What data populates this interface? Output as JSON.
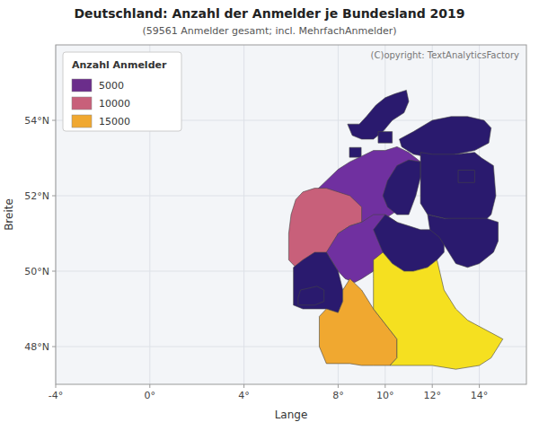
{
  "chart_data": {
    "type": "map",
    "title": "Deutschland: Anzahl der Anmelder je Bundesland 2019",
    "subtitle": "(59561 Anmelder gesamt; incl. MehrfachAnmelder)",
    "annotation": "(C)opyright: TextAnalyticsFactory",
    "xlabel": "Lange",
    "ylabel": "Breite",
    "xlim": [
      -4,
      16
    ],
    "ylim": [
      47,
      56
    ],
    "xticks": [
      {
        "value": -4,
        "label": "-4°"
      },
      {
        "value": 0,
        "label": "0°"
      },
      {
        "value": 4,
        "label": "4°"
      },
      {
        "value": 8,
        "label": "8°"
      },
      {
        "value": 10,
        "label": "10°"
      },
      {
        "value": 12,
        "label": "12°"
      },
      {
        "value": 14,
        "label": "14°"
      }
    ],
    "yticks": [
      {
        "value": 48,
        "label": "48°N"
      },
      {
        "value": 50,
        "label": "50°N"
      },
      {
        "value": 52,
        "label": "52°N"
      },
      {
        "value": 54,
        "label": "54°N"
      }
    ],
    "grid": true,
    "legend": "upper left",
    "legend_title": "Anzahl Anmelder",
    "legend_entries": [
      {
        "name": "5000",
        "color": "#6B2D8B"
      },
      {
        "name": "10000",
        "color": "#C8607A"
      },
      {
        "name": "15000",
        "color": "#F0A830"
      }
    ],
    "regions": [
      {
        "color": "#2A1A6E",
        "x": [
          8.4,
          8.6,
          8.9,
          9.2,
          9.6,
          10.0,
          10.4,
          10.9,
          11.0,
          10.8,
          10.3,
          9.9,
          9.5,
          9.0,
          8.6,
          8.4
        ],
        "y": [
          53.9,
          53.9,
          53.9,
          54.1,
          54.4,
          54.6,
          54.7,
          54.8,
          54.5,
          54.2,
          54.0,
          53.7,
          53.5,
          53.5,
          53.6,
          53.9
        ]
      },
      {
        "color": "#2A1A6E",
        "x": [
          9.7,
          10.3,
          10.3,
          9.7,
          9.7
        ],
        "y": [
          53.4,
          53.4,
          53.7,
          53.7,
          53.4
        ]
      },
      {
        "color": "#2A1A6E",
        "x": [
          10.6,
          11.2,
          12.0,
          12.8,
          13.5,
          14.2,
          14.5,
          14.4,
          13.8,
          13.0,
          12.0,
          11.2,
          10.7,
          10.6
        ],
        "y": [
          53.5,
          53.7,
          54.0,
          54.1,
          54.1,
          54.0,
          53.8,
          53.4,
          53.2,
          53.1,
          53.0,
          53.1,
          53.3,
          53.5
        ]
      },
      {
        "color": "#2A1A6E",
        "x": [
          8.48,
          8.98,
          8.98,
          8.48,
          8.48
        ],
        "y": [
          53.02,
          53.02,
          53.28,
          53.28,
          53.02
        ]
      },
      {
        "color": "#7030A0",
        "x": [
          6.65,
          7.0,
          7.5,
          8.0,
          8.5,
          9.0,
          9.5,
          10.0,
          10.5,
          11.0,
          11.5,
          11.5,
          11.2,
          10.9,
          10.5,
          10.0,
          9.5,
          9.0,
          8.5,
          8.0,
          7.5,
          7.1,
          6.65
        ],
        "y": [
          51.85,
          52.1,
          52.4,
          52.7,
          52.9,
          53.05,
          53.2,
          53.2,
          53.3,
          53.15,
          52.9,
          52.5,
          52.1,
          51.8,
          51.6,
          51.4,
          51.35,
          51.3,
          51.35,
          51.5,
          51.7,
          51.85,
          51.85
        ]
      },
      {
        "color": "#2A1A6E",
        "x": [
          10.5,
          11.0,
          11.5,
          11.5,
          11.3,
          11.0,
          10.5,
          10.1,
          9.9,
          10.1,
          10.5
        ],
        "y": [
          52.8,
          52.95,
          52.9,
          52.5,
          52.0,
          51.5,
          51.5,
          51.7,
          52.0,
          52.4,
          52.8
        ]
      },
      {
        "color": "#2A1A6E",
        "x": [
          11.5,
          12.0,
          13.0,
          13.8,
          14.1,
          14.6,
          14.7,
          14.5,
          14.0,
          13.5,
          12.5,
          11.8,
          11.5,
          11.5,
          11.5,
          11.5
        ],
        "y": [
          53.15,
          53.1,
          53.1,
          53.15,
          53.0,
          52.8,
          52.0,
          51.5,
          51.2,
          51.3,
          51.4,
          51.5,
          51.8,
          52.5,
          52.9,
          53.15
        ]
      },
      {
        "color": "#2A1A6E",
        "x": [
          13.1,
          13.8,
          13.8,
          13.1,
          13.1
        ],
        "y": [
          52.35,
          52.35,
          52.68,
          52.68,
          52.35
        ]
      },
      {
        "color": "#C8607A",
        "x": [
          5.9,
          6.2,
          6.5,
          7.0,
          7.5,
          7.8,
          8.0,
          8.5,
          9.0,
          9.0,
          8.5,
          8.0,
          7.5,
          7.0,
          6.5,
          6.2,
          6.0,
          5.9,
          5.9
        ],
        "y": [
          50.3,
          50.1,
          49.9,
          50.0,
          50.3,
          50.6,
          51.0,
          51.2,
          51.3,
          51.7,
          52.0,
          52.1,
          52.2,
          52.2,
          52.1,
          51.9,
          51.5,
          51.0,
          50.3
        ]
      },
      {
        "color": "#7030A0",
        "x": [
          8.0,
          8.3,
          8.7,
          9.0,
          9.5,
          9.9,
          10.2,
          10.5,
          10.5,
          10.0,
          9.5,
          9.0,
          8.5,
          8.0,
          7.5,
          8.0
        ],
        "y": [
          50.0,
          49.8,
          49.7,
          49.8,
          50.0,
          50.3,
          50.6,
          50.9,
          51.3,
          51.5,
          51.5,
          51.3,
          51.2,
          51.0,
          50.5,
          50.0
        ]
      },
      {
        "color": "#2A1A6E",
        "x": [
          9.9,
          10.3,
          10.8,
          11.2,
          11.8,
          12.2,
          12.5,
          12.5,
          12.0,
          11.5,
          11.0,
          10.5,
          10.0,
          9.5,
          9.9
        ],
        "y": [
          50.5,
          50.2,
          50.0,
          50.0,
          50.1,
          50.3,
          50.5,
          50.9,
          51.1,
          51.1,
          51.2,
          51.3,
          51.5,
          51.1,
          50.5
        ]
      },
      {
        "color": "#2A1A6E",
        "x": [
          11.9,
          12.3,
          12.7,
          13.0,
          13.5,
          14.0,
          14.6,
          14.8,
          14.8,
          14.3,
          13.5,
          12.5,
          11.8,
          11.9
        ],
        "y": [
          51.1,
          50.9,
          50.5,
          50.2,
          50.1,
          50.2,
          50.5,
          50.8,
          51.3,
          51.4,
          51.4,
          51.4,
          51.5,
          51.1
        ]
      },
      {
        "color": "#2A1A6E",
        "x": [
          6.1,
          6.5,
          7.0,
          7.5,
          8.0,
          8.2,
          8.2,
          8.0,
          7.5,
          7.0,
          6.5,
          6.1,
          6.1,
          6.1
        ],
        "y": [
          49.1,
          49.0,
          49.0,
          49.0,
          48.9,
          49.2,
          49.5,
          50.0,
          50.5,
          50.5,
          50.3,
          50.1,
          49.5,
          49.1
        ]
      },
      {
        "color": "#2A1A6E",
        "x": [
          6.3,
          7.0,
          7.4,
          7.4,
          7.1,
          6.4,
          6.3,
          6.3
        ],
        "y": [
          49.1,
          49.1,
          49.2,
          49.5,
          49.6,
          49.5,
          49.3,
          49.1
        ]
      },
      {
        "color": "#F0A830",
        "x": [
          7.5,
          8.0,
          8.5,
          9.0,
          9.5,
          10.2,
          10.5,
          10.5,
          10.0,
          9.5,
          9.0,
          8.5,
          8.2,
          8.2,
          8.0,
          7.5,
          7.2,
          7.2,
          7.5
        ],
        "y": [
          47.55,
          47.55,
          47.55,
          47.5,
          47.5,
          47.5,
          47.7,
          48.2,
          48.6,
          49.0,
          49.5,
          49.8,
          49.5,
          49.2,
          48.9,
          49.0,
          48.8,
          48.0,
          47.55
        ]
      },
      {
        "color": "#F5E020",
        "x": [
          10.2,
          10.8,
          12.0,
          13.0,
          14.0,
          14.5,
          15.0,
          13.8,
          13.5,
          13.0,
          12.5,
          12.2,
          11.8,
          11.2,
          10.8,
          10.3,
          9.9,
          9.5,
          9.5,
          9.5,
          10.0,
          10.5,
          10.5,
          10.2
        ],
        "y": [
          47.5,
          47.5,
          47.5,
          47.4,
          47.5,
          47.7,
          48.2,
          48.6,
          48.7,
          49.0,
          49.5,
          50.3,
          50.1,
          50.0,
          50.0,
          50.2,
          50.5,
          50.3,
          49.8,
          49.0,
          48.6,
          48.2,
          47.7,
          47.5
        ]
      }
    ]
  }
}
